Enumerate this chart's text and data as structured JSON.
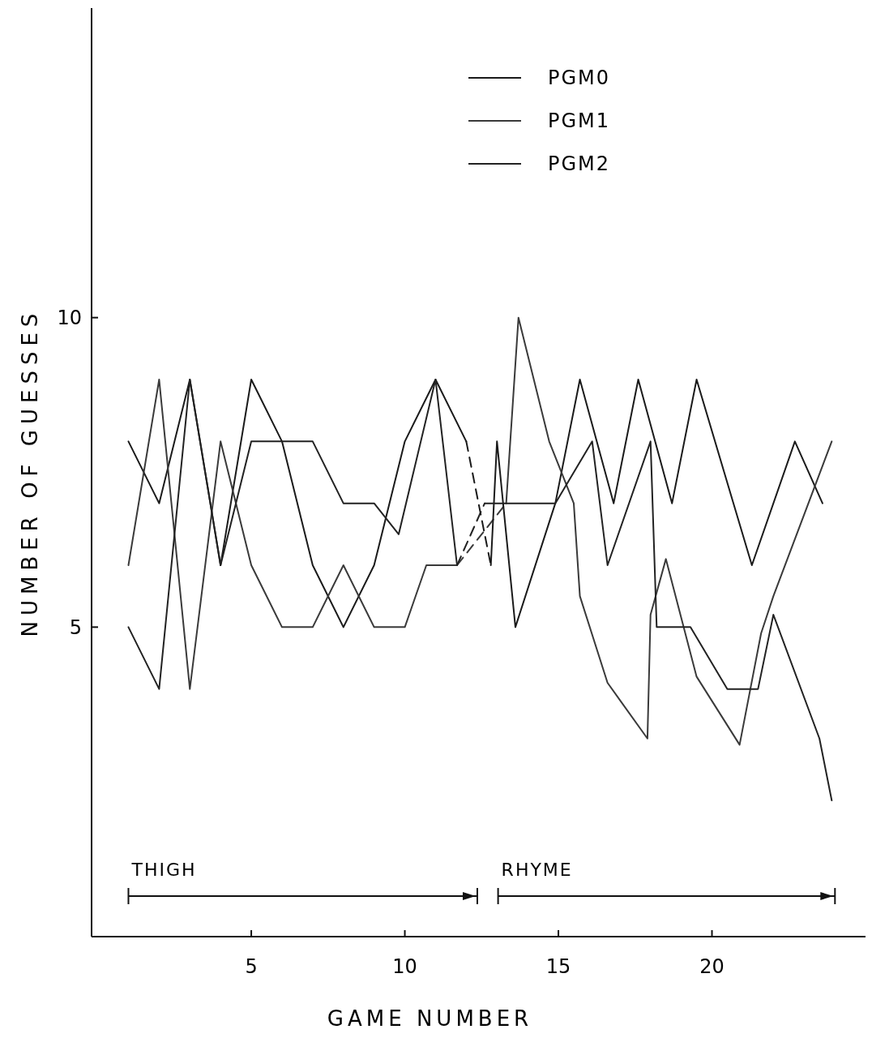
{
  "chart_data": {
    "type": "line",
    "xlabel": "GAME NUMBER",
    "ylabel": "NUMBER OF GUESSES",
    "xlim": [
      -0.2,
      25
    ],
    "ylim": [
      0,
      15
    ],
    "xticks": [
      5,
      10,
      15,
      20
    ],
    "yticks": [
      5,
      10
    ],
    "grid": false,
    "legend": "top right",
    "marker": "none",
    "line_style": "solid",
    "series": [
      {
        "name": "PGM0",
        "color": "#1a1a1a",
        "x": [
          1,
          2,
          3,
          4,
          5,
          6,
          7,
          8,
          9,
          10,
          11,
          12
        ],
        "values": [
          8,
          7,
          9,
          6,
          9,
          8,
          6,
          5,
          6,
          8,
          9,
          8
        ]
      },
      {
        "name": "PGM1",
        "color": "#3a3a3a",
        "x": [
          1,
          2,
          3,
          4,
          5,
          6,
          7,
          8,
          9,
          10,
          10.7,
          11.7
        ],
        "values": [
          6,
          9,
          4,
          8,
          6,
          5,
          5,
          6,
          5,
          5,
          6,
          6
        ]
      },
      {
        "name": "PGM2",
        "color": "#222222",
        "x": [
          1,
          2,
          3,
          4,
          5,
          7,
          8,
          9,
          9.8,
          11,
          11.7
        ],
        "values": [
          5,
          4,
          9,
          6,
          8,
          8,
          7,
          7,
          6.5,
          9,
          6
        ]
      },
      {
        "color": "#1a1a1a",
        "line_style": "dashed",
        "x": [
          12,
          12.8
        ],
        "values": [
          8,
          6
        ]
      },
      {
        "color": "#3a3a3a",
        "line_style": "dashed",
        "x": [
          11.7,
          13.3
        ],
        "values": [
          6,
          7
        ]
      },
      {
        "color": "#222222",
        "line_style": "dashed",
        "x": [
          11.7,
          12.6
        ],
        "values": [
          6,
          7
        ]
      },
      {
        "color": "#1a1a1a",
        "x": [
          12.8,
          13,
          13.6,
          14.9,
          15.7,
          16.8,
          17.6,
          18.7,
          19.5,
          20.7,
          21.3,
          22.7,
          23.6
        ],
        "values": [
          6,
          8,
          5,
          7,
          9,
          7,
          9,
          7,
          9,
          7,
          6,
          8,
          7
        ]
      },
      {
        "color": "#3a3a3a",
        "x": [
          13.3,
          13.7,
          14.7,
          15.5,
          15.7,
          16.6,
          17.9,
          18,
          18.5,
          19.5,
          20.9,
          21.6,
          22,
          23.9
        ],
        "values": [
          7,
          10,
          8,
          7,
          5.5,
          4.1,
          3.2,
          5.2,
          6.1,
          4.2,
          3.1,
          4.9,
          5.5,
          8
        ]
      },
      {
        "color": "#222222",
        "x": [
          12.6,
          14.9,
          16.1,
          16.6,
          18,
          18.2,
          19.3,
          20.5,
          21.5,
          22,
          23.5,
          23.9
        ],
        "values": [
          7,
          7,
          8,
          6,
          8,
          5,
          5,
          4,
          4,
          5.2,
          3.2,
          2.2
        ]
      }
    ],
    "annotations": [
      "THIGH",
      "RHYME"
    ]
  }
}
